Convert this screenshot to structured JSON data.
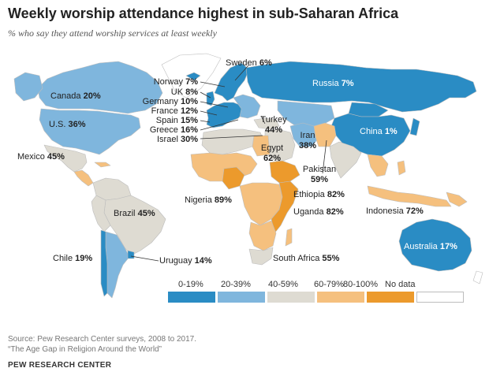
{
  "title": "Weekly worship attendance  highest in sub-Saharan  Africa",
  "subtitle": "% who say they attend worship services at least weekly",
  "colors": {
    "c0_19": "#2a8cc4",
    "c20_39": "#7fb6dd",
    "c40_59": "#dedbd2",
    "c60_79": "#f5c07e",
    "c80_100": "#ec9a2c",
    "nodata": "#ffffff",
    "border": "#bdbdbd"
  },
  "legend": [
    {
      "label": "0-19%",
      "color": "#2a8cc4"
    },
    {
      "label": "20-39%",
      "color": "#7fb6dd"
    },
    {
      "label": "40-59%",
      "color": "#dedbd2"
    },
    {
      "label": "60-79%",
      "color": "#f5c07e"
    },
    {
      "label": "80-100%",
      "color": "#ec9a2c"
    },
    {
      "label": "No data",
      "color": "#ffffff"
    }
  ],
  "countries": {
    "canada": {
      "name": "Canada",
      "value": "20%"
    },
    "us": {
      "name": "U.S.",
      "value": "36%"
    },
    "mexico": {
      "name": "Mexico",
      "value": "45%"
    },
    "brazil": {
      "name": "Brazil",
      "value": "45%"
    },
    "chile": {
      "name": "Chile",
      "value": "19%"
    },
    "uruguay": {
      "name": "Uruguay",
      "value": "14%"
    },
    "norway": {
      "name": "Norway",
      "value": "7%"
    },
    "uk": {
      "name": "UK",
      "value": "8%"
    },
    "germany": {
      "name": "Germany",
      "value": "10%"
    },
    "france": {
      "name": "France",
      "value": "12%"
    },
    "spain": {
      "name": "Spain",
      "value": "15%"
    },
    "greece": {
      "name": "Greece",
      "value": "16%"
    },
    "israel": {
      "name": "Israel",
      "value": "30%"
    },
    "sweden": {
      "name": "Sweden",
      "value": "6%"
    },
    "russia": {
      "name": "Russia",
      "value": "7%"
    },
    "turkey": {
      "name": "Turkey",
      "value": "44%"
    },
    "egypt": {
      "name": "Egypt",
      "value": "62%"
    },
    "iran": {
      "name": "Iran",
      "value": "38%"
    },
    "china": {
      "name": "China",
      "value": "1%"
    },
    "pakistan": {
      "name": "Pakistan",
      "value": "59%"
    },
    "nigeria": {
      "name": "Nigeria",
      "value": "89%"
    },
    "ethiopia": {
      "name": "Ethiopia",
      "value": "82%"
    },
    "uganda": {
      "name": "Uganda",
      "value": "82%"
    },
    "indonesia": {
      "name": "Indonesia",
      "value": "72%"
    },
    "south_africa": {
      "name": "South Africa",
      "value": "55%"
    },
    "australia": {
      "name": "Australia",
      "value": "17%"
    }
  },
  "source_line1": "Source: Pew Research Center surveys, 2008 to 2017.",
  "source_line2": "“The Age Gap in Religion Around the World”",
  "brand": "PEW RESEARCH CENTER"
}
